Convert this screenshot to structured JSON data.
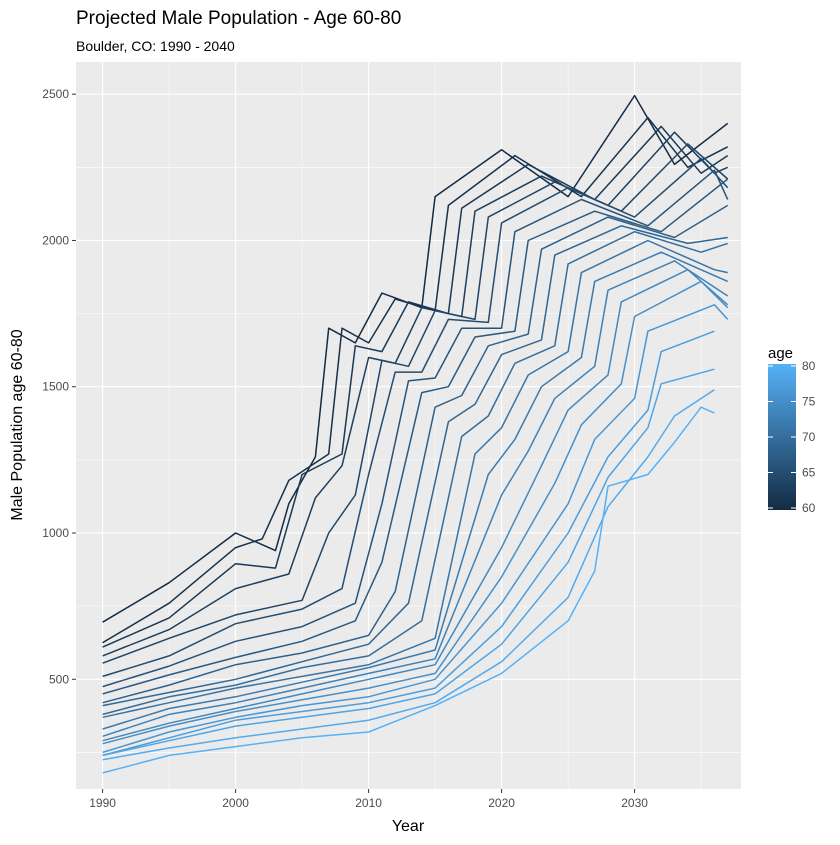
{
  "chart_data": {
    "type": "line",
    "title": "Projected Male Population - Age 60-80",
    "subtitle": "Boulder, CO: 1990 - 2040",
    "xlabel": "Year",
    "ylabel": "Male Population age 60-80",
    "xlim": [
      1988,
      2038
    ],
    "ylim": [
      125,
      2610
    ],
    "x_ticks": [
      1990,
      2000,
      2010,
      2020,
      2030
    ],
    "y_ticks": [
      500,
      1000,
      1500,
      2000,
      2500
    ],
    "grid": true,
    "legend": {
      "title": "age",
      "position": "right",
      "ticks": [
        60,
        65,
        70,
        75,
        80
      ],
      "low_color": "#132B43",
      "high_color": "#56B1F7"
    },
    "series": [
      {
        "age": 60,
        "points": [
          [
            1990,
            695
          ],
          [
            1995,
            830
          ],
          [
            2000,
            1000
          ],
          [
            2003,
            940
          ],
          [
            2004,
            1100
          ],
          [
            2006,
            1260
          ],
          [
            2007,
            1700
          ],
          [
            2009,
            1650
          ],
          [
            2011,
            1820
          ],
          [
            2014,
            1770
          ],
          [
            2015,
            2150
          ],
          [
            2020,
            2310
          ],
          [
            2025,
            2150
          ],
          [
            2030,
            2495
          ],
          [
            2033,
            2260
          ],
          [
            2037,
            2400
          ]
        ]
      },
      {
        "age": 61,
        "points": [
          [
            1990,
            625
          ],
          [
            1995,
            760
          ],
          [
            2000,
            950
          ],
          [
            2002,
            980
          ],
          [
            2004,
            1180
          ],
          [
            2007,
            1270
          ],
          [
            2008,
            1700
          ],
          [
            2010,
            1650
          ],
          [
            2012,
            1800
          ],
          [
            2015,
            1760
          ],
          [
            2016,
            2120
          ],
          [
            2021,
            2290
          ],
          [
            2026,
            2150
          ],
          [
            2031,
            2420
          ],
          [
            2034,
            2250
          ],
          [
            2037,
            2320
          ]
        ]
      },
      {
        "age": 62,
        "points": [
          [
            1990,
            610
          ],
          [
            1995,
            710
          ],
          [
            2000,
            895
          ],
          [
            2003,
            880
          ],
          [
            2005,
            1200
          ],
          [
            2008,
            1270
          ],
          [
            2009,
            1640
          ],
          [
            2011,
            1620
          ],
          [
            2013,
            1790
          ],
          [
            2016,
            1750
          ],
          [
            2017,
            2110
          ],
          [
            2022,
            2260
          ],
          [
            2027,
            2140
          ],
          [
            2032,
            2390
          ],
          [
            2035,
            2230
          ],
          [
            2037,
            2290
          ]
        ]
      },
      {
        "age": 63,
        "points": [
          [
            1990,
            580
          ],
          [
            1995,
            670
          ],
          [
            2000,
            810
          ],
          [
            2004,
            860
          ],
          [
            2006,
            1120
          ],
          [
            2008,
            1230
          ],
          [
            2010,
            1600
          ],
          [
            2012,
            1580
          ],
          [
            2014,
            1770
          ],
          [
            2017,
            1740
          ],
          [
            2018,
            2100
          ],
          [
            2023,
            2220
          ],
          [
            2028,
            2120
          ],
          [
            2033,
            2370
          ],
          [
            2036,
            2230
          ],
          [
            2037,
            2250
          ]
        ]
      },
      {
        "age": 64,
        "points": [
          [
            1990,
            555
          ],
          [
            1995,
            640
          ],
          [
            2000,
            720
          ],
          [
            2005,
            770
          ],
          [
            2007,
            1000
          ],
          [
            2009,
            1130
          ],
          [
            2011,
            1590
          ],
          [
            2013,
            1570
          ],
          [
            2015,
            1760
          ],
          [
            2018,
            1730
          ],
          [
            2019,
            2080
          ],
          [
            2024,
            2200
          ],
          [
            2029,
            2100
          ],
          [
            2034,
            2330
          ],
          [
            2037,
            2210
          ]
        ]
      },
      {
        "age": 65,
        "points": [
          [
            1990,
            510
          ],
          [
            1995,
            580
          ],
          [
            2000,
            690
          ],
          [
            2005,
            740
          ],
          [
            2008,
            810
          ],
          [
            2010,
            1200
          ],
          [
            2012,
            1550
          ],
          [
            2014,
            1550
          ],
          [
            2016,
            1730
          ],
          [
            2019,
            1720
          ],
          [
            2020,
            2060
          ],
          [
            2025,
            2180
          ],
          [
            2030,
            2080
          ],
          [
            2035,
            2280
          ],
          [
            2037,
            2180
          ]
        ]
      },
      {
        "age": 66,
        "points": [
          [
            1990,
            475
          ],
          [
            1995,
            545
          ],
          [
            2000,
            630
          ],
          [
            2005,
            680
          ],
          [
            2009,
            760
          ],
          [
            2011,
            1100
          ],
          [
            2013,
            1520
          ],
          [
            2015,
            1530
          ],
          [
            2017,
            1700
          ],
          [
            2020,
            1700
          ],
          [
            2021,
            2030
          ],
          [
            2026,
            2140
          ],
          [
            2031,
            2050
          ],
          [
            2036,
            2240
          ],
          [
            2037,
            2140
          ]
        ]
      },
      {
        "age": 67,
        "points": [
          [
            1990,
            450
          ],
          [
            1995,
            515
          ],
          [
            2000,
            575
          ],
          [
            2005,
            630
          ],
          [
            2009,
            700
          ],
          [
            2011,
            900
          ],
          [
            2014,
            1480
          ],
          [
            2016,
            1500
          ],
          [
            2018,
            1670
          ],
          [
            2021,
            1690
          ],
          [
            2022,
            2000
          ],
          [
            2027,
            2100
          ],
          [
            2032,
            2030
          ],
          [
            2037,
            2210
          ]
        ]
      },
      {
        "age": 68,
        "points": [
          [
            1990,
            420
          ],
          [
            1995,
            480
          ],
          [
            2000,
            550
          ],
          [
            2005,
            590
          ],
          [
            2010,
            650
          ],
          [
            2012,
            800
          ],
          [
            2015,
            1430
          ],
          [
            2017,
            1470
          ],
          [
            2019,
            1640
          ],
          [
            2022,
            1680
          ],
          [
            2023,
            1970
          ],
          [
            2028,
            2080
          ],
          [
            2033,
            2010
          ],
          [
            2037,
            2120
          ]
        ]
      },
      {
        "age": 69,
        "points": [
          [
            1990,
            410
          ],
          [
            1995,
            455
          ],
          [
            2000,
            500
          ],
          [
            2005,
            560
          ],
          [
            2010,
            620
          ],
          [
            2013,
            760
          ],
          [
            2016,
            1380
          ],
          [
            2018,
            1440
          ],
          [
            2020,
            1610
          ],
          [
            2023,
            1660
          ],
          [
            2024,
            1950
          ],
          [
            2029,
            2050
          ],
          [
            2034,
            1990
          ],
          [
            2037,
            2010
          ]
        ]
      },
      {
        "age": 70,
        "points": [
          [
            1990,
            380
          ],
          [
            1995,
            440
          ],
          [
            2000,
            480
          ],
          [
            2005,
            540
          ],
          [
            2010,
            580
          ],
          [
            2014,
            700
          ],
          [
            2017,
            1330
          ],
          [
            2019,
            1400
          ],
          [
            2021,
            1580
          ],
          [
            2024,
            1640
          ],
          [
            2025,
            1920
          ],
          [
            2030,
            2030
          ],
          [
            2035,
            1960
          ],
          [
            2037,
            1990
          ]
        ]
      },
      {
        "age": 71,
        "points": [
          [
            1990,
            370
          ],
          [
            1995,
            420
          ],
          [
            2000,
            470
          ],
          [
            2005,
            510
          ],
          [
            2010,
            550
          ],
          [
            2015,
            640
          ],
          [
            2018,
            1270
          ],
          [
            2020,
            1360
          ],
          [
            2022,
            1540
          ],
          [
            2025,
            1620
          ],
          [
            2026,
            1890
          ],
          [
            2031,
            2000
          ],
          [
            2036,
            1900
          ],
          [
            2037,
            1890
          ]
        ]
      },
      {
        "age": 72,
        "points": [
          [
            1990,
            330
          ],
          [
            1995,
            400
          ],
          [
            2000,
            440
          ],
          [
            2005,
            490
          ],
          [
            2010,
            540
          ],
          [
            2015,
            600
          ],
          [
            2019,
            1200
          ],
          [
            2021,
            1320
          ],
          [
            2023,
            1500
          ],
          [
            2026,
            1600
          ],
          [
            2027,
            1860
          ],
          [
            2032,
            1960
          ],
          [
            2037,
            1860
          ]
        ]
      },
      {
        "age": 73,
        "points": [
          [
            1990,
            305
          ],
          [
            1995,
            380
          ],
          [
            2000,
            420
          ],
          [
            2005,
            470
          ],
          [
            2010,
            520
          ],
          [
            2015,
            570
          ],
          [
            2020,
            1130
          ],
          [
            2022,
            1280
          ],
          [
            2024,
            1460
          ],
          [
            2027,
            1570
          ],
          [
            2028,
            1830
          ],
          [
            2033,
            1930
          ],
          [
            2037,
            1810
          ]
        ]
      },
      {
        "age": 74,
        "points": [
          [
            1990,
            290
          ],
          [
            1995,
            350
          ],
          [
            2000,
            400
          ],
          [
            2005,
            450
          ],
          [
            2010,
            500
          ],
          [
            2015,
            550
          ],
          [
            2020,
            950
          ],
          [
            2023,
            1230
          ],
          [
            2025,
            1420
          ],
          [
            2028,
            1540
          ],
          [
            2029,
            1790
          ],
          [
            2034,
            1900
          ],
          [
            2037,
            1780
          ]
        ]
      },
      {
        "age": 75,
        "points": [
          [
            1990,
            280
          ],
          [
            1995,
            340
          ],
          [
            2000,
            390
          ],
          [
            2005,
            430
          ],
          [
            2010,
            470
          ],
          [
            2015,
            520
          ],
          [
            2020,
            850
          ],
          [
            2024,
            1170
          ],
          [
            2026,
            1370
          ],
          [
            2029,
            1510
          ],
          [
            2030,
            1740
          ],
          [
            2035,
            1860
          ],
          [
            2037,
            1770
          ]
        ]
      },
      {
        "age": 76,
        "points": [
          [
            1990,
            250
          ],
          [
            1995,
            320
          ],
          [
            2000,
            370
          ],
          [
            2005,
            410
          ],
          [
            2010,
            440
          ],
          [
            2015,
            500
          ],
          [
            2020,
            760
          ],
          [
            2025,
            1100
          ],
          [
            2027,
            1320
          ],
          [
            2030,
            1460
          ],
          [
            2031,
            1690
          ],
          [
            2036,
            1780
          ],
          [
            2037,
            1730
          ]
        ]
      },
      {
        "age": 77,
        "points": [
          [
            1990,
            240
          ],
          [
            1995,
            300
          ],
          [
            2000,
            360
          ],
          [
            2005,
            390
          ],
          [
            2010,
            420
          ],
          [
            2015,
            470
          ],
          [
            2020,
            680
          ],
          [
            2025,
            1000
          ],
          [
            2028,
            1260
          ],
          [
            2031,
            1420
          ],
          [
            2032,
            1620
          ],
          [
            2036,
            1690
          ]
        ]
      },
      {
        "age": 78,
        "points": [
          [
            1990,
            240
          ],
          [
            1995,
            290
          ],
          [
            2000,
            340
          ],
          [
            2005,
            370
          ],
          [
            2010,
            400
          ],
          [
            2015,
            450
          ],
          [
            2020,
            620
          ],
          [
            2025,
            900
          ],
          [
            2028,
            1190
          ],
          [
            2031,
            1360
          ],
          [
            2032,
            1510
          ],
          [
            2036,
            1560
          ]
        ]
      },
      {
        "age": 79,
        "points": [
          [
            1990,
            225
          ],
          [
            1995,
            265
          ],
          [
            2000,
            300
          ],
          [
            2005,
            330
          ],
          [
            2010,
            360
          ],
          [
            2015,
            420
          ],
          [
            2020,
            560
          ],
          [
            2025,
            780
          ],
          [
            2028,
            1090
          ],
          [
            2031,
            1260
          ],
          [
            2033,
            1400
          ],
          [
            2036,
            1490
          ]
        ]
      },
      {
        "age": 80,
        "points": [
          [
            1990,
            180
          ],
          [
            1995,
            240
          ],
          [
            2000,
            270
          ],
          [
            2005,
            300
          ],
          [
            2010,
            320
          ],
          [
            2015,
            410
          ],
          [
            2020,
            520
          ],
          [
            2025,
            700
          ],
          [
            2027,
            870
          ],
          [
            2028,
            1160
          ],
          [
            2031,
            1200
          ],
          [
            2033,
            1310
          ],
          [
            2035,
            1430
          ],
          [
            2036,
            1410
          ]
        ]
      }
    ]
  }
}
